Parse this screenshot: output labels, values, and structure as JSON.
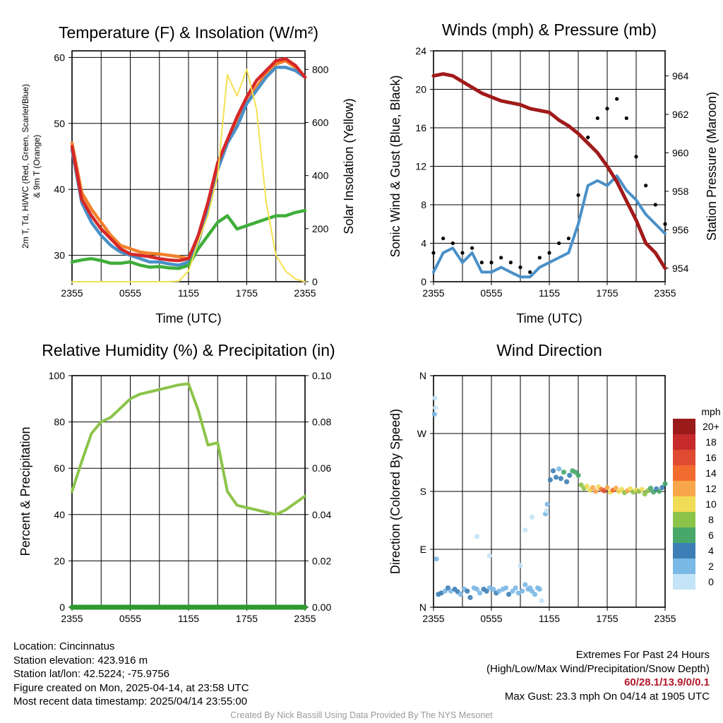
{
  "chart_data": [
    {
      "type": "line",
      "title": "Temperature (F) & Insolation (W/m²)",
      "xlabel": "Time (UTC)",
      "ylabel_left_line1": "2m T, Td, HI/WC (Red, Green, Scarlet/Blue)",
      "ylabel_left_line2": "& 9m T (Orange)",
      "ylabel_right": "Solar Insolation (Yellow)",
      "x_ticks": [
        "2355",
        "0555",
        "1155",
        "1755",
        "2355"
      ],
      "ylim_left": [
        26,
        61
      ],
      "ylim_right": [
        0,
        870
      ],
      "y_ticks_left": [
        30,
        40,
        50,
        60
      ],
      "y_ticks_right": [
        0,
        200,
        400,
        600,
        800
      ],
      "x_hours": [
        0,
        1,
        2,
        3,
        4,
        5,
        6,
        7,
        8,
        9,
        10,
        11,
        12,
        13,
        14,
        15,
        16,
        17,
        18,
        19,
        20,
        21,
        22,
        23,
        24
      ],
      "series": [
        {
          "color": "#f2802a",
          "axis": "left",
          "values": [
            47,
            39.5,
            37,
            35,
            33,
            31.5,
            31,
            30.5,
            30.3,
            30.2,
            30,
            29.8,
            29.5,
            32,
            37,
            43,
            47,
            50,
            53,
            55.5,
            57.5,
            59,
            59.5,
            58.5,
            57
          ]
        },
        {
          "color": "#4a90c8",
          "axis": "left",
          "values": [
            46,
            38,
            35,
            33,
            31.5,
            30.5,
            30,
            29.5,
            29,
            29,
            28.7,
            28.5,
            29,
            32,
            37,
            43,
            47,
            49.5,
            53,
            55,
            57,
            58.5,
            58.5,
            58,
            57
          ]
        },
        {
          "color": "#d62728",
          "axis": "left",
          "values": [
            46.5,
            38.5,
            36,
            34,
            32.5,
            31,
            30.2,
            30,
            29.8,
            29.5,
            29.3,
            29.2,
            29.5,
            33,
            38,
            44,
            47.5,
            51,
            54,
            56.5,
            58,
            59.5,
            59.8,
            58.8,
            57
          ]
        },
        {
          "color": "#3fae3a",
          "axis": "left",
          "values": [
            29,
            29.3,
            29.5,
            29.2,
            28.8,
            28.8,
            29,
            28.5,
            28.2,
            28.3,
            28.1,
            28,
            28.5,
            31,
            33,
            35,
            36,
            34,
            34.5,
            35,
            35.5,
            36,
            36,
            36.5,
            36.8
          ]
        },
        {
          "color": "#f5e050",
          "axis": "right",
          "values": [
            0,
            0,
            0,
            0,
            0,
            0,
            0,
            0,
            0,
            0,
            0,
            2,
            40,
            150,
            250,
            400,
            780,
            700,
            800,
            650,
            300,
            100,
            40,
            10,
            0
          ]
        }
      ]
    },
    {
      "type": "line",
      "title": "Winds (mph) & Pressure (mb)",
      "xlabel": "Time (UTC)",
      "ylabel_left": "Sonic Wind & Gust (Blue, Black)",
      "ylabel_right": "Station Pressure (Maroon)",
      "x_ticks": [
        "2355",
        "0555",
        "1155",
        "1755",
        "2355"
      ],
      "ylim_left": [
        0,
        24
      ],
      "ylim_right": [
        953.3,
        965.3
      ],
      "y_ticks_left": [
        0,
        4,
        8,
        12,
        16,
        20,
        24
      ],
      "y_ticks_right": [
        954,
        956,
        958,
        960,
        962,
        964
      ],
      "x_hours": [
        0,
        1,
        2,
        3,
        4,
        5,
        6,
        7,
        8,
        9,
        10,
        11,
        12,
        13,
        14,
        15,
        16,
        17,
        18,
        19,
        20,
        21,
        22,
        23,
        24
      ],
      "series": [
        {
          "color": "#4a90c8",
          "axis": "left",
          "values": [
            1,
            3,
            3.5,
            2,
            3,
            1,
            1,
            1.5,
            1,
            0.5,
            0.5,
            1.5,
            2,
            2.5,
            3,
            6,
            10,
            10.5,
            10,
            11,
            9.5,
            8.5,
            7,
            6,
            5
          ]
        },
        {
          "color": "#a11a1a",
          "axis": "right",
          "values": [
            964,
            964.1,
            964,
            963.7,
            963.4,
            963.1,
            962.9,
            962.7,
            962.6,
            962.5,
            962.3,
            962.2,
            962.1,
            961.7,
            961.4,
            961,
            960.5,
            960,
            959.3,
            958.5,
            957.5,
            956.5,
            955.3,
            954.8,
            954
          ]
        },
        {
          "color": "#000000",
          "axis": "left",
          "style": "dots",
          "values": [
            3,
            4.5,
            4,
            3,
            3.5,
            2,
            2,
            2.5,
            2,
            1.5,
            1,
            2.5,
            3,
            4,
            4.5,
            9,
            15,
            17,
            18,
            19,
            17,
            13,
            10,
            8,
            6
          ]
        }
      ]
    },
    {
      "type": "line",
      "title": "Relative Humidity (%) & Precipitation (in)",
      "ylabel_left": "Percent & Precipitation",
      "x_ticks": [
        "2355",
        "0555",
        "1155",
        "1755",
        "2355"
      ],
      "ylim_left": [
        0,
        100
      ],
      "ylim_right": [
        0,
        0.1
      ],
      "y_ticks_left": [
        0,
        20,
        40,
        60,
        80,
        100
      ],
      "y_ticks_right": [
        "0.00",
        "0.02",
        "0.04",
        "0.06",
        "0.08",
        "0.10"
      ],
      "x_hours": [
        0,
        1,
        2,
        3,
        4,
        5,
        6,
        7,
        8,
        9,
        10,
        11,
        12,
        13,
        14,
        15,
        16,
        17,
        18,
        19,
        20,
        21,
        22,
        23,
        24
      ],
      "series": [
        {
          "color": "#8cc44a",
          "axis": "left",
          "values": [
            50,
            63,
            75,
            80,
            82,
            86,
            90,
            92,
            93,
            94,
            95,
            96,
            96.5,
            85,
            70,
            71,
            50,
            44,
            43,
            42,
            41,
            40,
            42,
            45,
            48
          ]
        },
        {
          "color": "#2d9a2d",
          "axis": "right",
          "values": [
            0,
            0,
            0,
            0,
            0,
            0,
            0,
            0,
            0,
            0,
            0,
            0,
            0,
            0,
            0,
            0,
            0,
            0,
            0,
            0,
            0,
            0,
            0,
            0,
            0
          ]
        }
      ]
    },
    {
      "type": "scatter",
      "title": "Wind Direction",
      "ylabel_left": "Direction (Colored By Speed)",
      "x_ticks": [
        "2355",
        "0555",
        "1155",
        "1755",
        "2355"
      ],
      "y_ticks_left": [
        "N",
        "E",
        "S",
        "W",
        "N"
      ],
      "ylim_left": [
        0,
        360
      ],
      "legend_title": "mph",
      "legend_labels": [
        "20+",
        "18",
        "16",
        "14",
        "12",
        "10",
        "8",
        "6",
        "4",
        "2",
        "0"
      ],
      "legend_colors": [
        "#9b1b1b",
        "#c62a2a",
        "#e04a33",
        "#f26b2f",
        "#f8a84a",
        "#f0dc55",
        "#8cc44a",
        "#48a86a",
        "#3c7fb6",
        "#7ab8e6",
        "#c4e4f7"
      ],
      "points": [
        [
          0.1,
          300,
          1
        ],
        [
          0.15,
          325,
          0.5
        ],
        [
          0.2,
          310,
          0.5
        ],
        [
          0.3,
          75,
          1
        ],
        [
          0.5,
          20,
          3
        ],
        [
          0.8,
          22,
          4
        ],
        [
          1.2,
          25,
          2
        ],
        [
          1.5,
          30,
          3
        ],
        [
          1.8,
          25,
          2.5
        ],
        [
          2.2,
          28,
          3
        ],
        [
          2.5,
          24,
          3.5
        ],
        [
          2.8,
          20,
          2
        ],
        [
          3.2,
          28,
          2
        ],
        [
          3.5,
          25,
          3
        ],
        [
          3.8,
          15,
          3.5
        ],
        [
          4.2,
          30,
          2.5
        ],
        [
          4.5,
          28,
          2
        ],
        [
          4.8,
          22,
          2
        ],
        [
          5.2,
          28,
          3
        ],
        [
          5.5,
          25,
          3
        ],
        [
          5.8,
          30,
          2.5
        ],
        [
          6.2,
          28,
          2
        ],
        [
          6.5,
          22,
          3
        ],
        [
          6.8,
          25,
          2.5
        ],
        [
          7.2,
          28,
          2
        ],
        [
          7.5,
          30,
          2
        ],
        [
          7.8,
          20,
          3
        ],
        [
          8.2,
          25,
          2
        ],
        [
          8.5,
          30,
          2
        ],
        [
          8.8,
          22,
          1
        ],
        [
          9,
          65,
          0.5
        ],
        [
          9.2,
          25,
          2.5
        ],
        [
          9.5,
          35,
          2
        ],
        [
          9.8,
          28,
          1
        ],
        [
          10,
          30,
          2.5
        ],
        [
          10.2,
          25,
          2
        ],
        [
          10.5,
          20,
          1.5
        ],
        [
          10.8,
          30,
          2
        ],
        [
          11,
          28,
          1.5
        ],
        [
          11.2,
          10,
          0.5
        ],
        [
          11.6,
          145,
          1
        ],
        [
          11.8,
          160,
          2
        ],
        [
          12.1,
          198,
          4
        ],
        [
          12.4,
          212,
          3
        ],
        [
          12.7,
          202,
          4.5
        ],
        [
          13,
          215,
          2.5
        ],
        [
          13.2,
          200,
          3
        ],
        [
          13.5,
          210,
          5
        ],
        [
          13.8,
          195,
          4
        ],
        [
          14.1,
          205,
          3
        ],
        [
          14.4,
          212,
          5
        ],
        [
          14.7,
          210,
          6
        ],
        [
          15,
          205,
          6
        ],
        [
          15.3,
          190,
          7
        ],
        [
          15.6,
          185,
          8
        ],
        [
          15.9,
          188,
          9
        ],
        [
          16.2,
          182,
          10
        ],
        [
          16.5,
          186,
          11
        ],
        [
          16.8,
          180,
          12
        ],
        [
          17.1,
          187,
          10
        ],
        [
          17.4,
          183,
          13
        ],
        [
          17.7,
          181,
          15
        ],
        [
          18,
          186,
          12
        ],
        [
          18.3,
          179,
          10
        ],
        [
          18.6,
          182,
          14
        ],
        [
          18.9,
          185,
          11
        ],
        [
          19.2,
          180,
          9
        ],
        [
          19.5,
          183,
          10
        ],
        [
          19.8,
          178,
          8
        ],
        [
          20.1,
          181,
          12
        ],
        [
          20.4,
          184,
          9
        ],
        [
          20.7,
          179,
          7
        ],
        [
          21,
          182,
          10
        ],
        [
          21.3,
          180,
          8
        ],
        [
          21.6,
          183,
          9
        ],
        [
          21.9,
          176,
          7
        ],
        [
          22.2,
          181,
          8
        ],
        [
          22.5,
          185,
          6
        ],
        [
          22.8,
          179,
          5
        ],
        [
          23.1,
          184,
          4
        ],
        [
          23.4,
          180,
          6
        ],
        [
          23.7,
          186,
          4
        ],
        [
          24,
          192,
          5
        ],
        [
          9.5,
          120,
          0.5
        ],
        [
          10.2,
          140,
          0.5
        ],
        [
          11.7,
          150,
          0.5
        ],
        [
          4.5,
          110,
          0.5
        ],
        [
          5.8,
          80,
          0.5
        ]
      ]
    }
  ],
  "footer": {
    "location": "Location: Cincinnatus",
    "elevation": "Station elevation: 423.916 m",
    "latlon": "Station lat/lon: 42.5224; -75.9756",
    "created": "Figure created on Mon, 2025-04-14, at 23:58 UTC",
    "recent": "Most recent data timestamp: 2025/04/14 23:55:00",
    "extremes_title": "Extremes For Past 24 Hours",
    "extremes_sub": "(High/Low/Max Wind/Precipitation/Snow Depth)",
    "extremes_values": "60/28.1/13.9/0/0.1",
    "max_gust": "Max Gust: 23.3 mph On 04/14 at 1905 UTC"
  },
  "credit": "Created By Nick Bassill Using Data Provided By The NYS Mesonet"
}
